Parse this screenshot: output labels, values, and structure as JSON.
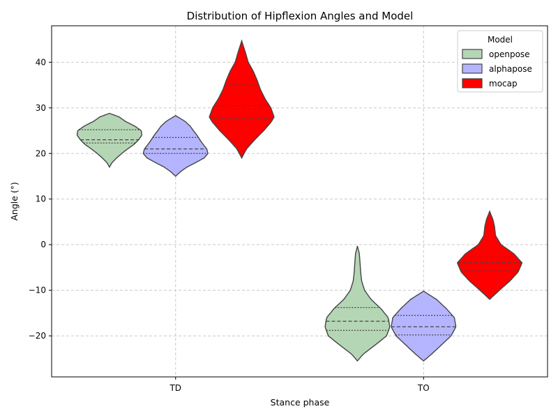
{
  "chart_data": {
    "type": "violin",
    "title": "Distribution of Hipflexion Angles and Model",
    "xlabel": "Stance phase",
    "ylabel": "Angle (°)",
    "categories": [
      "TD",
      "TO"
    ],
    "ylim": [
      -29,
      48
    ],
    "yticks": [
      -20,
      -10,
      0,
      10,
      20,
      30,
      40
    ],
    "grid": true,
    "legend": {
      "title": "Model",
      "position": "top-right"
    },
    "series": [
      {
        "name": "openpose",
        "color": "#b5d6b5",
        "violins": [
          {
            "category": "TD",
            "min": 17.0,
            "max": 28.8,
            "q1": 22.3,
            "median": 23.0,
            "q3": 25.2,
            "profile": [
              [
                17.0,
                0.0
              ],
              [
                18.0,
                0.08
              ],
              [
                19.0,
                0.22
              ],
              [
                20.0,
                0.38
              ],
              [
                21.0,
                0.56
              ],
              [
                22.0,
                0.76
              ],
              [
                23.0,
                0.9
              ],
              [
                24.0,
                1.0
              ],
              [
                25.0,
                0.98
              ],
              [
                26.0,
                0.78
              ],
              [
                27.0,
                0.5
              ],
              [
                28.0,
                0.3
              ],
              [
                28.8,
                0.0
              ]
            ]
          },
          {
            "category": "TO",
            "min": -25.5,
            "max": -0.3,
            "q1": -18.8,
            "median": -16.8,
            "q3": -13.8,
            "profile": [
              [
                -25.5,
                0.0
              ],
              [
                -24.0,
                0.18
              ],
              [
                -22.0,
                0.55
              ],
              [
                -20.0,
                0.9
              ],
              [
                -18.0,
                1.0
              ],
              [
                -16.0,
                0.95
              ],
              [
                -14.0,
                0.72
              ],
              [
                -12.0,
                0.42
              ],
              [
                -10.0,
                0.22
              ],
              [
                -8.0,
                0.13
              ],
              [
                -6.0,
                0.1
              ],
              [
                -4.0,
                0.08
              ],
              [
                -2.0,
                0.06
              ],
              [
                -0.3,
                0.0
              ]
            ]
          }
        ]
      },
      {
        "name": "alphapose",
        "color": "#b5b5ff",
        "violins": [
          {
            "category": "TD",
            "min": 15.0,
            "max": 28.3,
            "q1": 20.0,
            "median": 21.0,
            "q3": 23.5,
            "profile": [
              [
                15.0,
                0.0
              ],
              [
                16.0,
                0.15
              ],
              [
                17.0,
                0.35
              ],
              [
                18.0,
                0.62
              ],
              [
                19.0,
                0.88
              ],
              [
                20.0,
                1.0
              ],
              [
                21.0,
                0.96
              ],
              [
                22.0,
                0.85
              ],
              [
                23.0,
                0.75
              ],
              [
                24.0,
                0.66
              ],
              [
                25.0,
                0.55
              ],
              [
                26.0,
                0.45
              ],
              [
                27.0,
                0.3
              ],
              [
                28.3,
                0.0
              ]
            ]
          },
          {
            "category": "TO",
            "min": -25.5,
            "max": -10.2,
            "q1": -19.8,
            "median": -18.0,
            "q3": -15.5,
            "profile": [
              [
                -25.5,
                0.0
              ],
              [
                -24.0,
                0.25
              ],
              [
                -22.0,
                0.55
              ],
              [
                -20.0,
                0.85
              ],
              [
                -18.0,
                1.0
              ],
              [
                -16.0,
                0.95
              ],
              [
                -14.0,
                0.7
              ],
              [
                -12.0,
                0.4
              ],
              [
                -10.2,
                0.0
              ]
            ]
          }
        ]
      },
      {
        "name": "mocap",
        "color": "#ff0000",
        "violins": [
          {
            "category": "TD",
            "min": 19.0,
            "max": 44.7,
            "q1": 27.6,
            "median": 30.5,
            "q3": 35.0,
            "profile": [
              [
                19.0,
                0.0
              ],
              [
                21.0,
                0.15
              ],
              [
                23.0,
                0.4
              ],
              [
                25.0,
                0.68
              ],
              [
                27.0,
                0.92
              ],
              [
                28.0,
                1.0
              ],
              [
                30.0,
                0.9
              ],
              [
                32.0,
                0.72
              ],
              [
                34.0,
                0.58
              ],
              [
                36.0,
                0.48
              ],
              [
                38.0,
                0.36
              ],
              [
                40.0,
                0.2
              ],
              [
                42.0,
                0.12
              ],
              [
                44.7,
                0.0
              ]
            ]
          },
          {
            "category": "TO",
            "min": -12.0,
            "max": 7.3,
            "q1": -5.8,
            "median": -4.0,
            "q3": -2.8,
            "profile": [
              [
                -12.0,
                0.0
              ],
              [
                -10.0,
                0.3
              ],
              [
                -8.0,
                0.62
              ],
              [
                -6.0,
                0.88
              ],
              [
                -4.0,
                1.0
              ],
              [
                -2.0,
                0.75
              ],
              [
                0.0,
                0.35
              ],
              [
                2.0,
                0.18
              ],
              [
                4.0,
                0.15
              ],
              [
                5.5,
                0.1
              ],
              [
                7.3,
                0.0
              ]
            ]
          }
        ]
      }
    ]
  }
}
